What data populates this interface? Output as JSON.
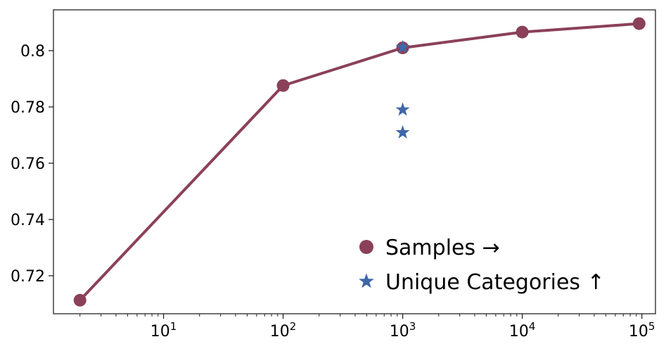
{
  "chart_data": {
    "type": "line",
    "x_scale": "log",
    "xlim": [
      1.2,
      130000
    ],
    "ylim": [
      0.7065,
      0.8145
    ],
    "x_ticks": [
      {
        "value": 10,
        "base": "10",
        "exp": "1"
      },
      {
        "value": 100,
        "base": "10",
        "exp": "2"
      },
      {
        "value": 1000,
        "base": "10",
        "exp": "3"
      },
      {
        "value": 10000,
        "base": "10",
        "exp": "4"
      },
      {
        "value": 100000,
        "base": "10",
        "exp": "5"
      }
    ],
    "y_ticks": [
      {
        "value": 0.72,
        "label": "0.72"
      },
      {
        "value": 0.74,
        "label": "0.74"
      },
      {
        "value": 0.76,
        "label": "0.76"
      },
      {
        "value": 0.78,
        "label": "0.78"
      },
      {
        "value": 0.8,
        "label": "0.8"
      }
    ],
    "grid": false,
    "legend_position": "lower-right",
    "series": [
      {
        "name": "Samples →",
        "marker": "circle",
        "line": true,
        "color": "#8b4059",
        "x": [
          2,
          100,
          1000,
          10000,
          95000
        ],
        "y": [
          0.7113,
          0.7876,
          0.801,
          0.8066,
          0.8096
        ]
      },
      {
        "name": "Unique Categories ↑",
        "marker": "star",
        "line": false,
        "color": "#3e67a8",
        "x": [
          1000,
          1000,
          1000
        ],
        "y": [
          0.7709,
          0.779,
          0.8012
        ]
      }
    ]
  }
}
